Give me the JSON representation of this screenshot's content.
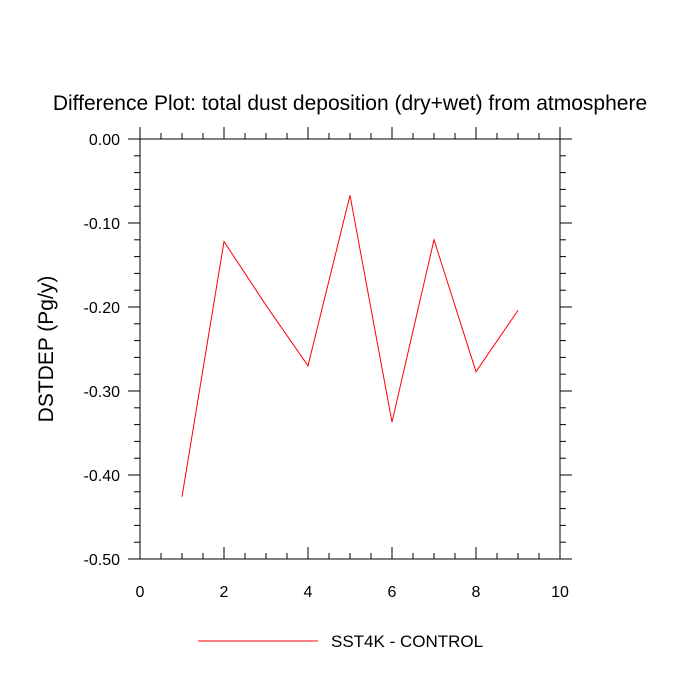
{
  "chart_data": {
    "type": "line",
    "title": "Difference Plot: total dust deposition (dry+wet) from atmosphere",
    "xlabel": "",
    "ylabel": "DSTDEP  (Pg/y)",
    "xlim": [
      0,
      10
    ],
    "ylim": [
      -0.5,
      0.0
    ],
    "x_ticks": [
      "0",
      "2",
      "4",
      "6",
      "8",
      "10"
    ],
    "y_ticks": [
      "0.00",
      "-0.10",
      "-0.20",
      "-0.30",
      "-0.40",
      "-0.50"
    ],
    "grid": false,
    "legend_position": "bottom",
    "series": [
      {
        "name": "SST4K - CONTROL",
        "color": "#ff0000",
        "x": [
          1,
          2,
          3,
          4,
          5,
          6,
          7,
          8,
          9
        ],
        "values": [
          -0.426,
          -0.122,
          -0.198,
          -0.27,
          -0.067,
          -0.337,
          -0.12,
          -0.277,
          -0.204
        ]
      }
    ]
  }
}
